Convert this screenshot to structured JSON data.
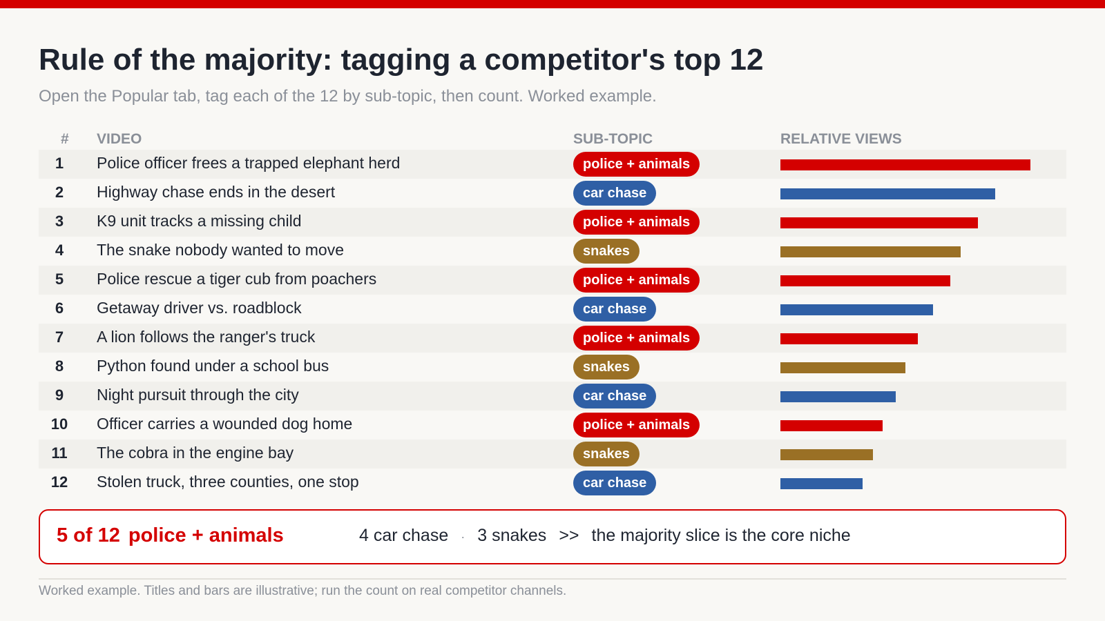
{
  "header": {
    "title": "Rule of the majority: tagging a competitor's top 12",
    "subtitle": "Open the Popular tab, tag each of the 12 by sub-topic, then count. Worked example."
  },
  "columns": {
    "rank": "#",
    "video": "VIDEO",
    "subtopic": "SUB-TOPIC",
    "views": "RELATIVE VIEWS"
  },
  "colors": {
    "police + animals": "#d40000",
    "car chase": "#2f5fa5",
    "snakes": "#9a7025"
  },
  "chart_data": {
    "type": "bar",
    "title": "Rule of the majority: tagging a competitor's top 12",
    "xlabel": "RELATIVE VIEWS",
    "categories": [
      "1",
      "2",
      "3",
      "4",
      "5",
      "6",
      "7",
      "8",
      "9",
      "10",
      "11",
      "12"
    ],
    "values": [
      100,
      86,
      79,
      72,
      68,
      61,
      55,
      50,
      46,
      41,
      37,
      33
    ],
    "xlim": [
      0,
      100
    ],
    "rows": [
      {
        "rank": "1",
        "title": "Police officer frees a trapped elephant herd",
        "subtopic": "police + animals",
        "value": 100
      },
      {
        "rank": "2",
        "title": "Highway chase ends in the desert",
        "subtopic": "car chase",
        "value": 86
      },
      {
        "rank": "3",
        "title": "K9 unit tracks a missing child",
        "subtopic": "police + animals",
        "value": 79
      },
      {
        "rank": "4",
        "title": "The snake nobody wanted to move",
        "subtopic": "snakes",
        "value": 72
      },
      {
        "rank": "5",
        "title": "Police rescue a tiger cub from poachers",
        "subtopic": "police + animals",
        "value": 68
      },
      {
        "rank": "6",
        "title": "Getaway driver vs. roadblock",
        "subtopic": "car chase",
        "value": 61
      },
      {
        "rank": "7",
        "title": "A lion follows the ranger's truck",
        "subtopic": "police + animals",
        "value": 55
      },
      {
        "rank": "8",
        "title": "Python found under a school bus",
        "subtopic": "snakes",
        "value": 50
      },
      {
        "rank": "9",
        "title": "Night pursuit through the city",
        "subtopic": "car chase",
        "value": 46
      },
      {
        "rank": "10",
        "title": "Officer carries a wounded dog home",
        "subtopic": "police + animals",
        "value": 41
      },
      {
        "rank": "11",
        "title": "The cobra in the engine bay",
        "subtopic": "snakes",
        "value": 37
      },
      {
        "rank": "12",
        "title": "Stolen truck, three counties, one stop",
        "subtopic": "car chase",
        "value": 33
      }
    ]
  },
  "summary": {
    "lead_count": "5 of 12",
    "lead_topic": "police + animals",
    "item_2": "4 car chase",
    "dot": "·",
    "item_3": "3 snakes",
    "arrow": ">>",
    "conclusion": "the majority slice is the core niche"
  },
  "footnote": "Worked example. Titles and bars are illustrative; run the count on real competitor channels."
}
